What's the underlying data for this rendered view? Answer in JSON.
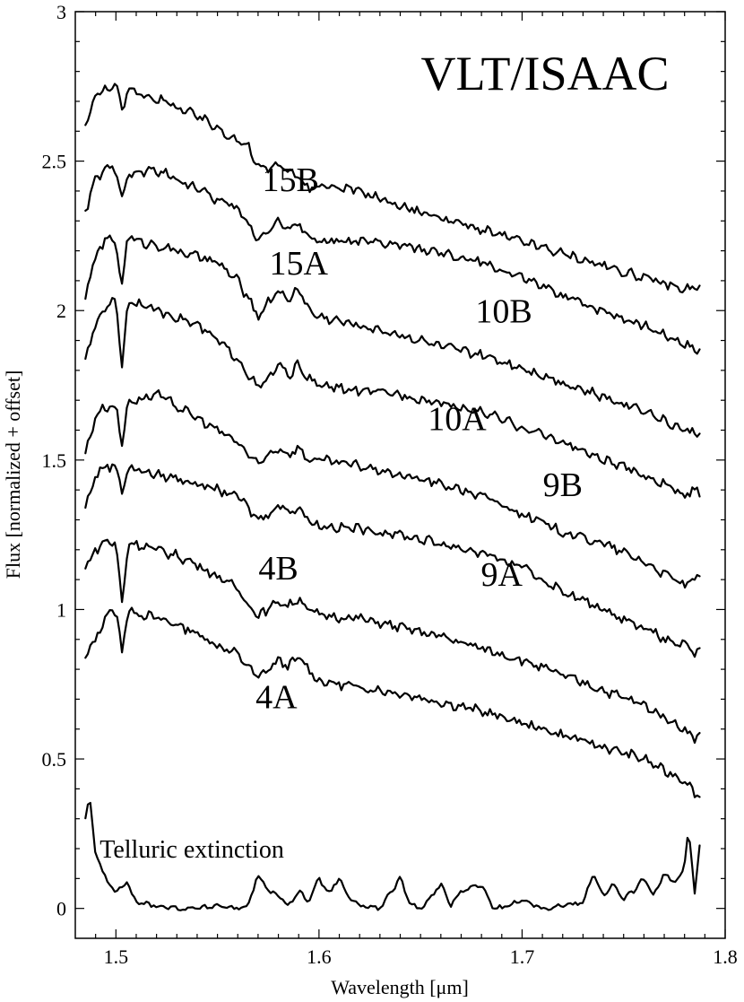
{
  "chart_data": {
    "type": "line",
    "title": "VLT/ISAAC",
    "xlabel": "Wavelength [μm]",
    "ylabel": "Flux [normalized + offset]",
    "xlim": [
      1.48,
      1.8
    ],
    "ylim": [
      -0.1,
      3.0
    ],
    "x_ticks": [
      "1.5",
      "1.6",
      "1.7",
      "1.8"
    ],
    "x_tick_values": [
      1.5,
      1.6,
      1.7,
      1.8
    ],
    "y_ticks": [
      "0",
      "0.5",
      "1",
      "1.5",
      "2",
      "2.5",
      "3"
    ],
    "y_tick_values": [
      0,
      0.5,
      1,
      1.5,
      2,
      2.5,
      3
    ],
    "grid": false,
    "x_range": [
      1.485,
      1.788
    ],
    "series": [
      {
        "name": "4A",
        "label_at": [
          1.579,
          0.67
        ],
        "x": [
          1.485,
          1.49,
          1.495,
          1.5,
          1.503,
          1.506,
          1.51,
          1.52,
          1.53,
          1.54,
          1.55,
          1.56,
          1.565,
          1.57,
          1.575,
          1.58,
          1.585,
          1.59,
          1.595,
          1.6,
          1.62,
          1.64,
          1.66,
          1.68,
          1.7,
          1.72,
          1.74,
          1.76,
          1.77,
          1.78,
          1.785,
          1.788
        ],
        "y": [
          0.84,
          0.9,
          0.98,
          1.0,
          0.86,
          1.0,
          0.99,
          0.97,
          0.95,
          0.92,
          0.88,
          0.85,
          0.81,
          0.77,
          0.8,
          0.83,
          0.81,
          0.84,
          0.8,
          0.76,
          0.74,
          0.72,
          0.69,
          0.66,
          0.62,
          0.58,
          0.54,
          0.5,
          0.46,
          0.43,
          0.39,
          0.37
        ]
      },
      {
        "name": "4B",
        "label_at": [
          1.58,
          1.1
        ],
        "x": [
          1.485,
          1.49,
          1.495,
          1.5,
          1.503,
          1.506,
          1.51,
          1.52,
          1.53,
          1.54,
          1.55,
          1.56,
          1.565,
          1.57,
          1.575,
          1.58,
          1.585,
          1.59,
          1.595,
          1.6,
          1.62,
          1.64,
          1.66,
          1.68,
          1.7,
          1.72,
          1.74,
          1.76,
          1.77,
          1.78,
          1.785,
          1.788
        ],
        "y": [
          1.14,
          1.2,
          1.23,
          1.22,
          1.02,
          1.22,
          1.22,
          1.2,
          1.18,
          1.15,
          1.11,
          1.07,
          1.02,
          0.98,
          1.0,
          1.03,
          1.01,
          1.04,
          1.0,
          0.98,
          0.97,
          0.94,
          0.91,
          0.87,
          0.83,
          0.78,
          0.73,
          0.68,
          0.64,
          0.6,
          0.57,
          0.58
        ]
      },
      {
        "name": "9A",
        "label_at": [
          1.69,
          1.08
        ],
        "x": [
          1.485,
          1.49,
          1.495,
          1.5,
          1.503,
          1.506,
          1.51,
          1.52,
          1.53,
          1.54,
          1.55,
          1.56,
          1.565,
          1.57,
          1.575,
          1.58,
          1.585,
          1.59,
          1.595,
          1.6,
          1.62,
          1.64,
          1.66,
          1.68,
          1.7,
          1.72,
          1.74,
          1.76,
          1.77,
          1.78,
          1.785,
          1.788
        ],
        "y": [
          1.34,
          1.45,
          1.48,
          1.48,
          1.4,
          1.47,
          1.47,
          1.45,
          1.44,
          1.42,
          1.4,
          1.38,
          1.34,
          1.3,
          1.32,
          1.35,
          1.33,
          1.34,
          1.3,
          1.28,
          1.27,
          1.25,
          1.22,
          1.19,
          1.14,
          1.06,
          1.0,
          0.94,
          0.9,
          0.88,
          0.85,
          0.86
        ]
      },
      {
        "name": "9B",
        "label_at": [
          1.72,
          1.38
        ],
        "x": [
          1.485,
          1.49,
          1.495,
          1.5,
          1.503,
          1.506,
          1.51,
          1.52,
          1.53,
          1.54,
          1.55,
          1.56,
          1.565,
          1.57,
          1.575,
          1.58,
          1.585,
          1.59,
          1.595,
          1.6,
          1.62,
          1.64,
          1.66,
          1.68,
          1.7,
          1.72,
          1.74,
          1.76,
          1.77,
          1.78,
          1.785,
          1.788
        ],
        "y": [
          1.52,
          1.65,
          1.68,
          1.68,
          1.55,
          1.7,
          1.7,
          1.72,
          1.68,
          1.64,
          1.6,
          1.56,
          1.52,
          1.48,
          1.52,
          1.54,
          1.52,
          1.54,
          1.5,
          1.5,
          1.48,
          1.45,
          1.42,
          1.38,
          1.32,
          1.26,
          1.22,
          1.16,
          1.12,
          1.08,
          1.1,
          1.1
        ]
      },
      {
        "name": "10A",
        "label_at": [
          1.668,
          1.6
        ],
        "x": [
          1.485,
          1.49,
          1.495,
          1.5,
          1.503,
          1.506,
          1.51,
          1.52,
          1.53,
          1.54,
          1.55,
          1.56,
          1.565,
          1.57,
          1.575,
          1.58,
          1.585,
          1.59,
          1.595,
          1.6,
          1.62,
          1.64,
          1.66,
          1.68,
          1.7,
          1.72,
          1.74,
          1.76,
          1.77,
          1.78,
          1.785,
          1.788
        ],
        "y": [
          1.84,
          1.95,
          2.02,
          2.03,
          1.82,
          2.03,
          2.03,
          2.0,
          1.98,
          1.95,
          1.9,
          1.84,
          1.79,
          1.74,
          1.77,
          1.82,
          1.78,
          1.82,
          1.77,
          1.75,
          1.73,
          1.72,
          1.69,
          1.66,
          1.61,
          1.56,
          1.5,
          1.45,
          1.42,
          1.38,
          1.4,
          1.39
        ]
      },
      {
        "name": "10B",
        "label_at": [
          1.691,
          1.96
        ],
        "x": [
          1.485,
          1.49,
          1.495,
          1.5,
          1.503,
          1.506,
          1.51,
          1.52,
          1.53,
          1.54,
          1.55,
          1.56,
          1.565,
          1.57,
          1.575,
          1.58,
          1.585,
          1.59,
          1.595,
          1.6,
          1.62,
          1.64,
          1.66,
          1.68,
          1.7,
          1.72,
          1.74,
          1.76,
          1.77,
          1.78,
          1.785,
          1.788
        ],
        "y": [
          2.05,
          2.18,
          2.24,
          2.23,
          2.08,
          2.26,
          2.23,
          2.22,
          2.2,
          2.18,
          2.16,
          2.1,
          2.04,
          1.98,
          2.03,
          2.07,
          2.03,
          2.08,
          2.0,
          1.98,
          1.95,
          1.92,
          1.88,
          1.85,
          1.81,
          1.76,
          1.71,
          1.67,
          1.63,
          1.6,
          1.59,
          1.6
        ]
      },
      {
        "name": "15A",
        "label_at": [
          1.59,
          2.12
        ],
        "x": [
          1.485,
          1.49,
          1.495,
          1.5,
          1.503,
          1.506,
          1.51,
          1.52,
          1.53,
          1.54,
          1.55,
          1.56,
          1.565,
          1.57,
          1.575,
          1.58,
          1.585,
          1.59,
          1.595,
          1.6,
          1.62,
          1.64,
          1.66,
          1.68,
          1.7,
          1.72,
          1.74,
          1.76,
          1.77,
          1.78,
          1.785,
          1.788
        ],
        "y": [
          2.33,
          2.44,
          2.47,
          2.48,
          2.38,
          2.45,
          2.46,
          2.47,
          2.44,
          2.41,
          2.37,
          2.34,
          2.29,
          2.24,
          2.27,
          2.3,
          2.27,
          2.29,
          2.25,
          2.23,
          2.23,
          2.22,
          2.19,
          2.16,
          2.11,
          2.05,
          2.0,
          1.95,
          1.92,
          1.89,
          1.87,
          1.87
        ]
      },
      {
        "name": "15B",
        "label_at": [
          1.586,
          2.4
        ],
        "x": [
          1.485,
          1.49,
          1.495,
          1.5,
          1.503,
          1.506,
          1.51,
          1.52,
          1.53,
          1.54,
          1.55,
          1.56,
          1.565,
          1.57,
          1.575,
          1.58,
          1.585,
          1.59,
          1.595,
          1.6,
          1.62,
          1.64,
          1.66,
          1.68,
          1.7,
          1.72,
          1.74,
          1.76,
          1.77,
          1.78,
          1.785,
          1.788
        ],
        "y": [
          2.62,
          2.72,
          2.74,
          2.76,
          2.66,
          2.74,
          2.73,
          2.71,
          2.68,
          2.65,
          2.61,
          2.57,
          2.55,
          2.48,
          2.47,
          2.49,
          2.47,
          2.44,
          2.41,
          2.42,
          2.4,
          2.35,
          2.31,
          2.27,
          2.23,
          2.19,
          2.15,
          2.11,
          2.09,
          2.07,
          2.08,
          2.07
        ]
      },
      {
        "name": "Telluric extinction",
        "label_at": [
          1.492,
          0.17
        ],
        "x": [
          1.485,
          1.487,
          1.49,
          1.495,
          1.5,
          1.505,
          1.51,
          1.52,
          1.53,
          1.54,
          1.55,
          1.56,
          1.565,
          1.57,
          1.575,
          1.58,
          1.585,
          1.59,
          1.595,
          1.6,
          1.605,
          1.61,
          1.615,
          1.62,
          1.63,
          1.64,
          1.645,
          1.65,
          1.66,
          1.665,
          1.67,
          1.68,
          1.685,
          1.69,
          1.7,
          1.71,
          1.72,
          1.73,
          1.735,
          1.74,
          1.745,
          1.75,
          1.755,
          1.76,
          1.765,
          1.77,
          1.775,
          1.78,
          1.782,
          1.785,
          1.788
        ],
        "y": [
          0.3,
          0.38,
          0.18,
          0.1,
          0.05,
          0.09,
          0.02,
          0.01,
          0.0,
          0.0,
          0.01,
          0.0,
          0.01,
          0.11,
          0.06,
          0.04,
          0.01,
          0.06,
          0.02,
          0.1,
          0.05,
          0.1,
          0.03,
          0.01,
          0.0,
          0.1,
          0.01,
          0.0,
          0.08,
          0.01,
          0.06,
          0.08,
          0.01,
          0.0,
          0.03,
          0.0,
          0.01,
          0.02,
          0.12,
          0.04,
          0.08,
          0.03,
          0.06,
          0.1,
          0.04,
          0.12,
          0.08,
          0.14,
          0.27,
          0.05,
          0.24
        ]
      }
    ]
  }
}
